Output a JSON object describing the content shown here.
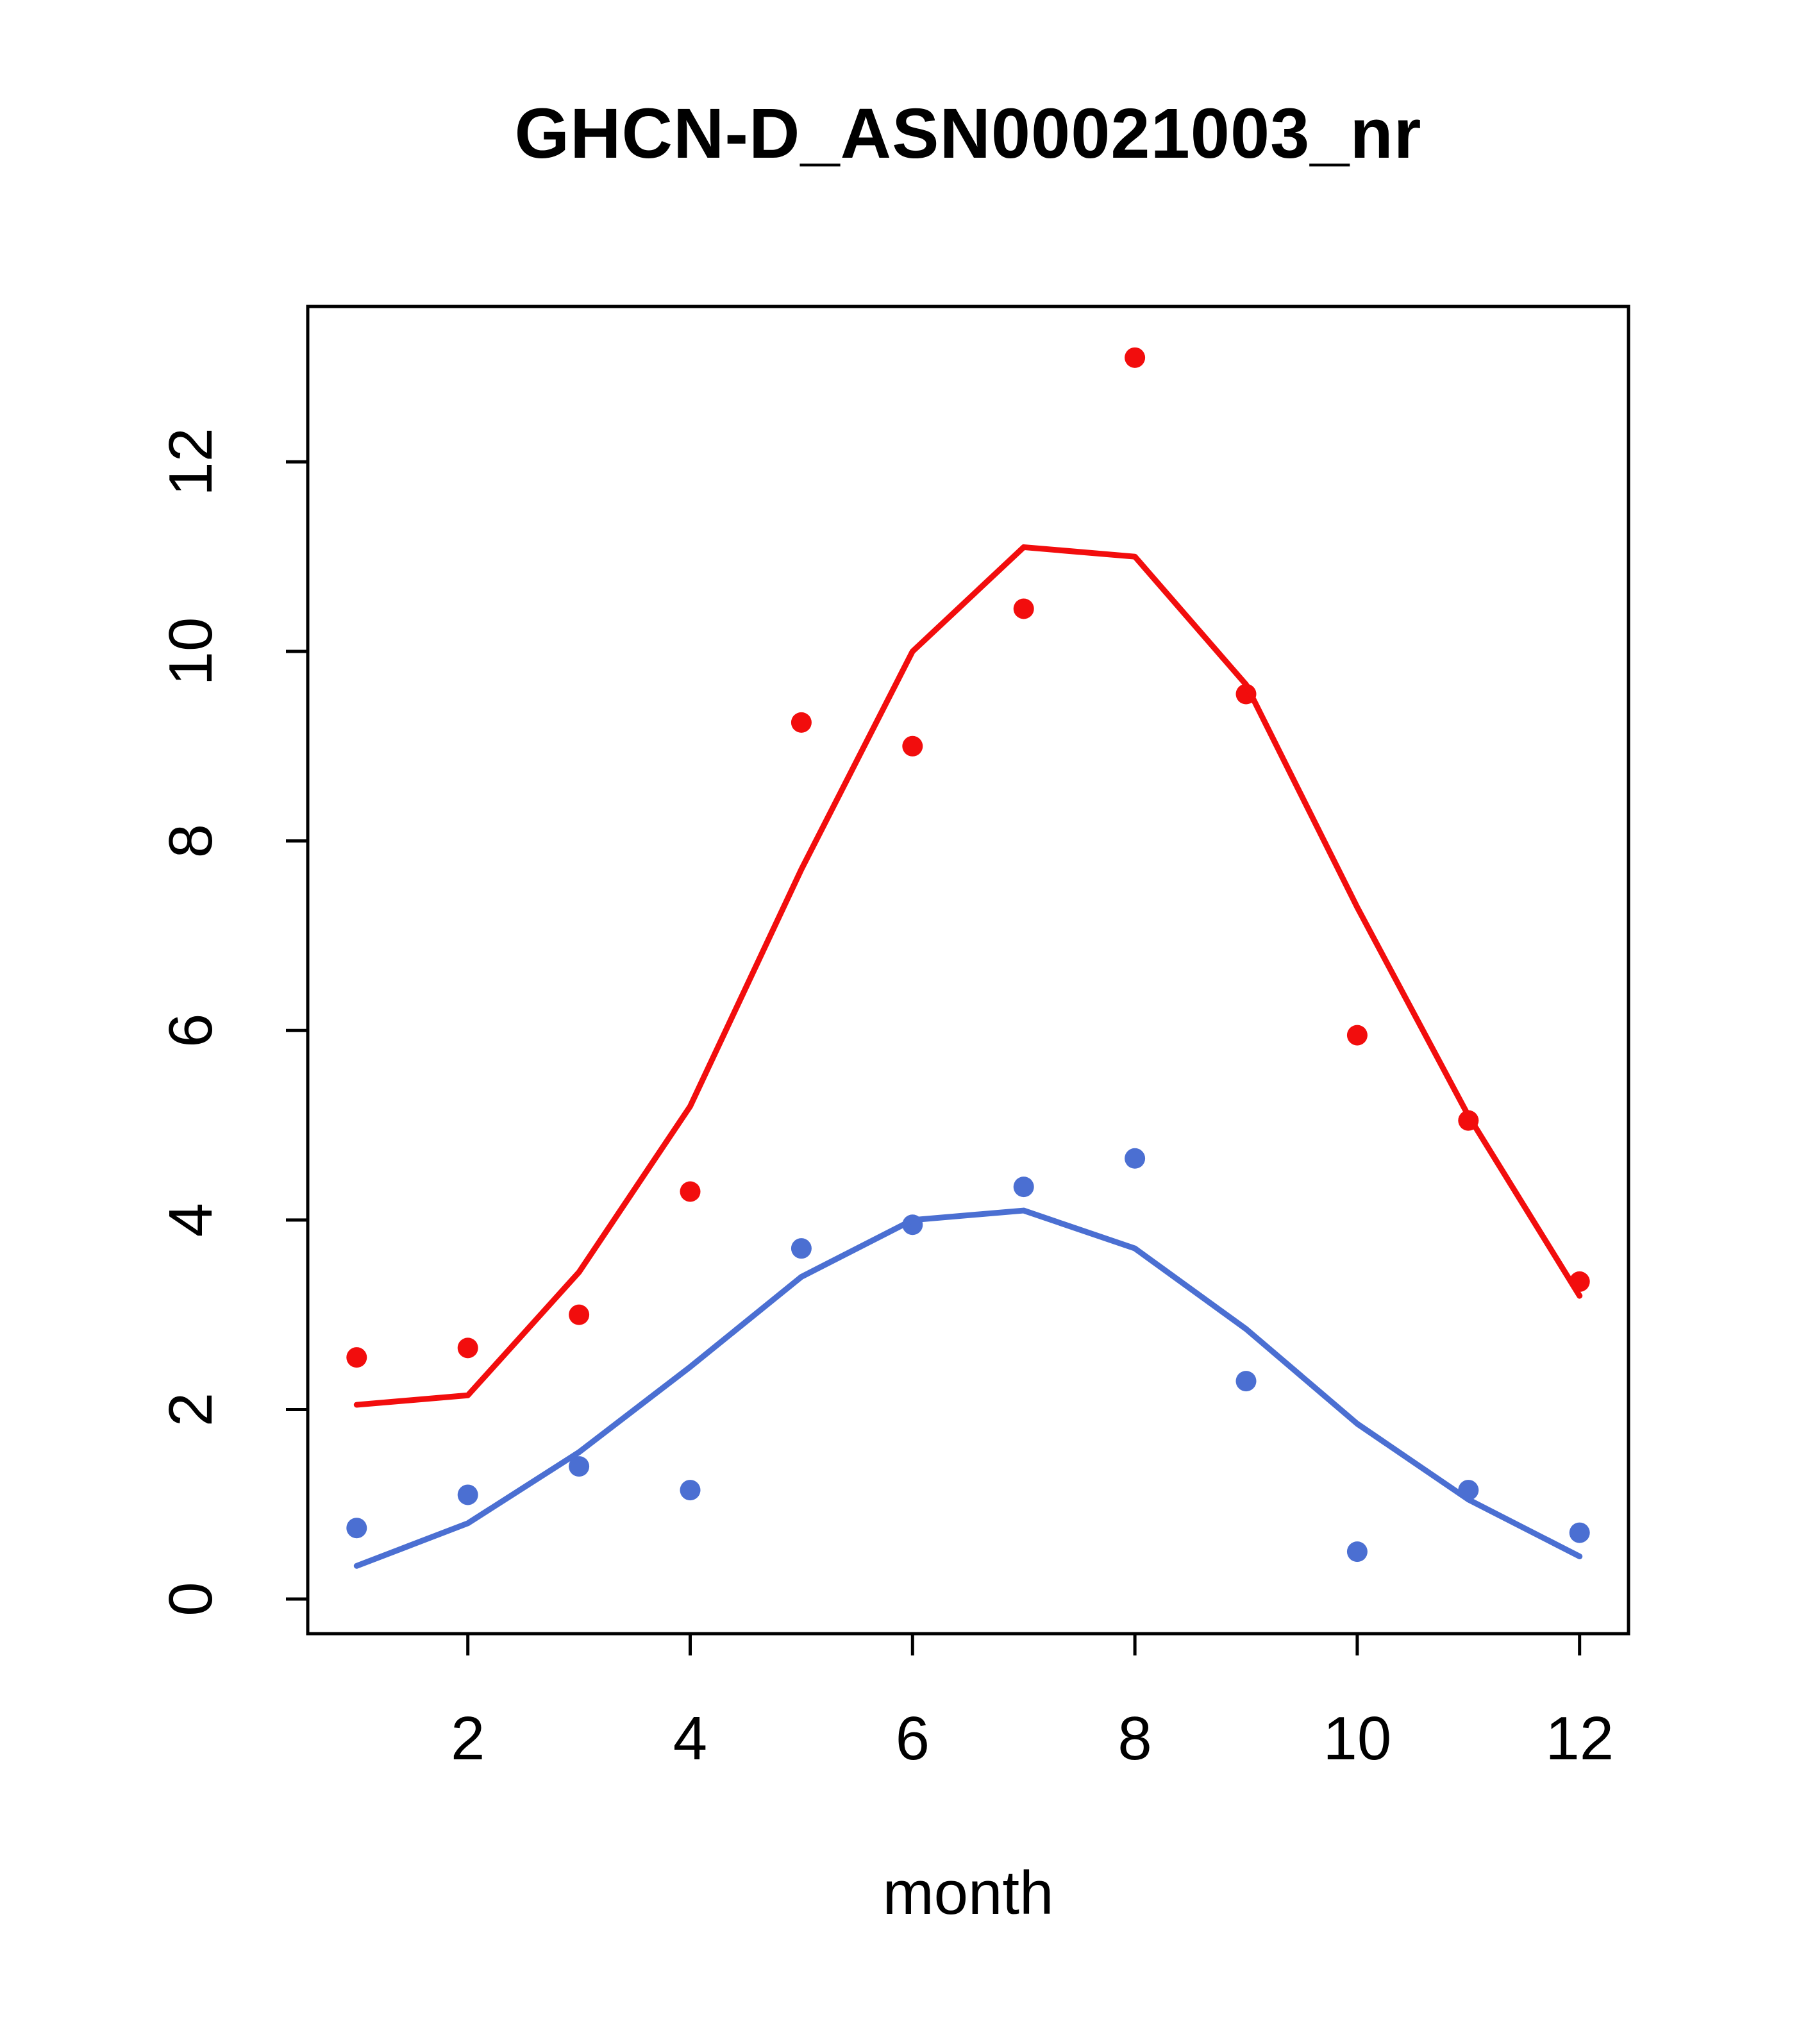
{
  "chart_data": {
    "type": "scatter",
    "title": "GHCN-D_ASN00021003_nr",
    "xlabel": "month",
    "ylabel": "",
    "x": [
      1,
      2,
      3,
      4,
      5,
      6,
      7,
      8,
      9,
      10,
      11,
      12
    ],
    "xticks": [
      2,
      4,
      6,
      8,
      10,
      12
    ],
    "yticks": [
      0,
      2,
      4,
      6,
      8,
      10,
      12
    ],
    "xlim": [
      0.56,
      12.44
    ],
    "ylim": [
      -0.365,
      13.64
    ],
    "grid": false,
    "legend": "none",
    "colors": {
      "series1": "#F20D0D",
      "series2": "#4B6FD2"
    },
    "series": [
      {
        "name": "series1-points",
        "style": "points",
        "color": "#F20D0D",
        "values": [
          2.55,
          2.65,
          3.0,
          4.3,
          9.25,
          9.0,
          10.45,
          13.1,
          9.55,
          5.95,
          5.05,
          3.35
        ]
      },
      {
        "name": "series1-smooth-line",
        "style": "line",
        "color": "#F20D0D",
        "values": [
          2.05,
          2.15,
          3.45,
          5.2,
          7.7,
          10.0,
          11.1,
          11.0,
          9.65,
          7.3,
          5.1,
          3.2
        ]
      },
      {
        "name": "series2-points",
        "style": "points",
        "color": "#4B6FD2",
        "values": [
          0.75,
          1.1,
          1.4,
          1.15,
          3.7,
          3.95,
          4.35,
          4.65,
          2.3,
          0.5,
          1.15,
          0.7
        ]
      },
      {
        "name": "series2-smooth-line",
        "style": "line",
        "color": "#4B6FD2",
        "values": [
          0.35,
          0.8,
          1.55,
          2.45,
          3.4,
          4.0,
          4.1,
          3.7,
          2.85,
          1.85,
          1.05,
          0.45
        ]
      }
    ]
  }
}
